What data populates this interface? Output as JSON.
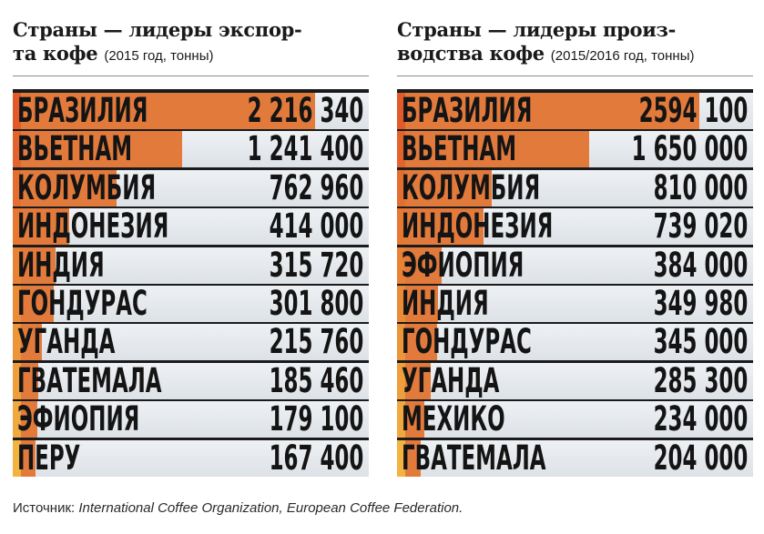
{
  "chart_data": [
    {
      "type": "bar",
      "orientation": "horizontal",
      "title": "Страны — лидеры экспорта кофе",
      "subtitle": "(2015 год, тонны)",
      "categories": [
        "БРАЗИЛИЯ",
        "ВЬЕТНАМ",
        "КОЛУМБИЯ",
        "ИНДОНЕЗИЯ",
        "ИНДИЯ",
        "ГОНДУРАС",
        "УГАНДА",
        "ГВАТЕМАЛА",
        "ЭФИОПИЯ",
        "ПЕРУ"
      ],
      "values": [
        2216340,
        1241400,
        762960,
        414000,
        315720,
        301800,
        215760,
        185460,
        179100,
        167400
      ],
      "value_labels": [
        "2 216 340",
        "1 241 400",
        "762 960",
        "414 000",
        "315 720",
        "301 800",
        "215 760",
        "185 460",
        "179 100",
        "167 400"
      ],
      "bar_color": "#e27a3c"
    },
    {
      "type": "bar",
      "orientation": "horizontal",
      "title": "Страны — лидеры производства кофе",
      "subtitle": "(2015/2016 год, тонны)",
      "categories": [
        "БРАЗИЛИЯ",
        "ВЬЕТНАМ",
        "КОЛУМБИЯ",
        "ИНДОНЕЗИЯ",
        "ЭФИОПИЯ",
        "ИНДИЯ",
        "ГОНДУРАС",
        "УГАНДА",
        "МЕХИКО",
        "ГВАТЕМАЛА"
      ],
      "values": [
        2594100,
        1650000,
        810000,
        739020,
        384000,
        349980,
        345000,
        285300,
        234000,
        204000
      ],
      "value_labels": [
        "2594 100",
        "1 650 000",
        "810 000",
        "739 020",
        "384 000",
        "349 980",
        "345 000",
        "285 300",
        "234 000",
        "204 000"
      ],
      "bar_color": "#e27a3c"
    }
  ],
  "titles": {
    "left_line1": "Страны — лидеры экспор-",
    "left_line2": "та кофе",
    "left_sub": "(2015 год, тонны)",
    "right_line1": "Страны — лидеры произ-",
    "right_line2": "водства кофе",
    "right_sub": "(2015/2016 год, тонны)"
  },
  "source": {
    "label": "Источник:",
    "text": "International Coffee Organization, European Coffee Federation."
  },
  "colors": {
    "bar": "#e27a3c",
    "row_bg": "#e6eaee",
    "frame": "#1b1b1d",
    "accent_top": "#e05a2a",
    "accent_bottom": "#f2b340"
  }
}
